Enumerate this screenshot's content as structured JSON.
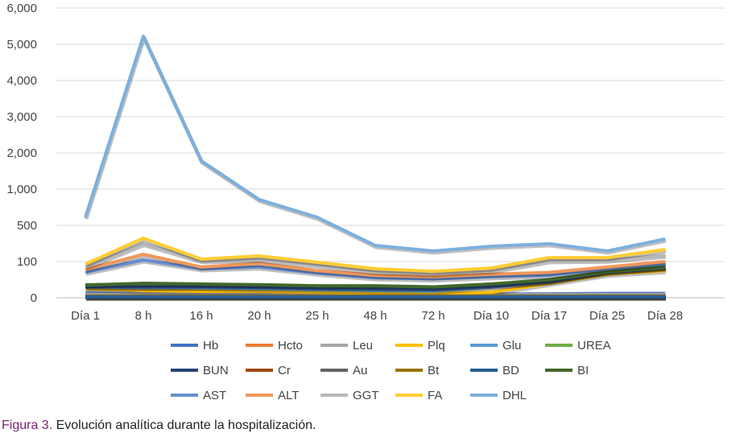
{
  "chart_data": {
    "type": "line",
    "title": "",
    "xlabel": "",
    "ylabel": "",
    "y_ticks": [
      0,
      100,
      500,
      1000,
      2000,
      3000,
      4000,
      5000,
      6000
    ],
    "y_tick_labels": [
      "0",
      "100",
      "500",
      "1,000",
      "2,000",
      "3,000",
      "4,000",
      "5,000",
      "6,000"
    ],
    "ylim": [
      0,
      6000
    ],
    "grid": true,
    "legend_position": "bottom",
    "categories": [
      "Día 1",
      "8 h",
      "16 h",
      "20 h",
      "25 h",
      "48 h",
      "72 h",
      "Día 10",
      "Día 17",
      "Día 25",
      "Día 28"
    ],
    "series": [
      {
        "name": "Hb",
        "color": "#4472c4",
        "values": [
          13,
          12,
          12,
          11,
          11,
          10,
          10,
          10,
          11,
          12,
          12
        ]
      },
      {
        "name": "Hcto",
        "color": "#ed7d31",
        "values": [
          3,
          3,
          3,
          3,
          3,
          3,
          3,
          3,
          3,
          3,
          3
        ]
      },
      {
        "name": "Leu",
        "color": "#a5a5a5",
        "values": [
          10,
          11,
          10,
          9,
          9,
          8,
          8,
          8,
          9,
          9,
          9
        ]
      },
      {
        "name": "Plq",
        "color": "#ffc000",
        "values": [
          25,
          20,
          18,
          18,
          15,
          13,
          12,
          15,
          40,
          65,
          75
        ]
      },
      {
        "name": "Glu",
        "color": "#5b9bd5",
        "values": [
          30,
          28,
          28,
          25,
          22,
          20,
          18,
          30,
          45,
          75,
          88
        ]
      },
      {
        "name": "UREA",
        "color": "#70ad47",
        "values": [
          36,
          38,
          36,
          34,
          30,
          28,
          27,
          35,
          48,
          72,
          84
        ]
      },
      {
        "name": "BUN",
        "color": "#264478",
        "values": [
          30,
          30,
          30,
          29,
          28,
          27,
          26,
          32,
          45,
          70,
          82
        ]
      },
      {
        "name": "Cr",
        "color": "#9e480e",
        "values": [
          1,
          1,
          1,
          1,
          1,
          1,
          1,
          1,
          1,
          1,
          1
        ]
      },
      {
        "name": "Au",
        "color": "#636363",
        "values": [
          5,
          5,
          5,
          5,
          5,
          5,
          5,
          5,
          5,
          5,
          5
        ]
      },
      {
        "name": "Bt",
        "color": "#997300",
        "values": [
          3,
          3,
          3,
          3,
          3,
          3,
          3,
          3,
          3,
          3,
          3
        ]
      },
      {
        "name": "BD",
        "color": "#255e91",
        "values": [
          2,
          2,
          2,
          2,
          2,
          2,
          2,
          2,
          2,
          2,
          2
        ]
      },
      {
        "name": "BI",
        "color": "#43682b",
        "values": [
          35,
          40,
          38,
          36,
          33,
          33,
          30,
          38,
          50,
          72,
          84
        ]
      },
      {
        "name": "AST",
        "color": "#698ed0",
        "values": [
          70,
          118,
          80,
          85,
          68,
          55,
          52,
          58,
          62,
          80,
          95
        ]
      },
      {
        "name": "ALT",
        "color": "#f1975a",
        "values": [
          78,
          180,
          85,
          95,
          75,
          62,
          58,
          65,
          70,
          85,
          100
        ]
      },
      {
        "name": "GGT",
        "color": "#b7b7b7",
        "values": [
          85,
          300,
          110,
          125,
          90,
          72,
          66,
          75,
          110,
          115,
          170
        ]
      },
      {
        "name": "FA",
        "color": "#ffcd33",
        "values": [
          93,
          358,
          127,
          162,
          98,
          80,
          73,
          82,
          144,
          144,
          233
        ]
      },
      {
        "name": "DHL",
        "color": "#7cafdd",
        "values": [
          611,
          5222,
          1778,
          856,
          611,
          278,
          216,
          269,
          296,
          216,
          349
        ]
      }
    ]
  },
  "caption": {
    "label": "Figura 3.",
    "text": " Evolución analítica durante la hospitalización."
  }
}
